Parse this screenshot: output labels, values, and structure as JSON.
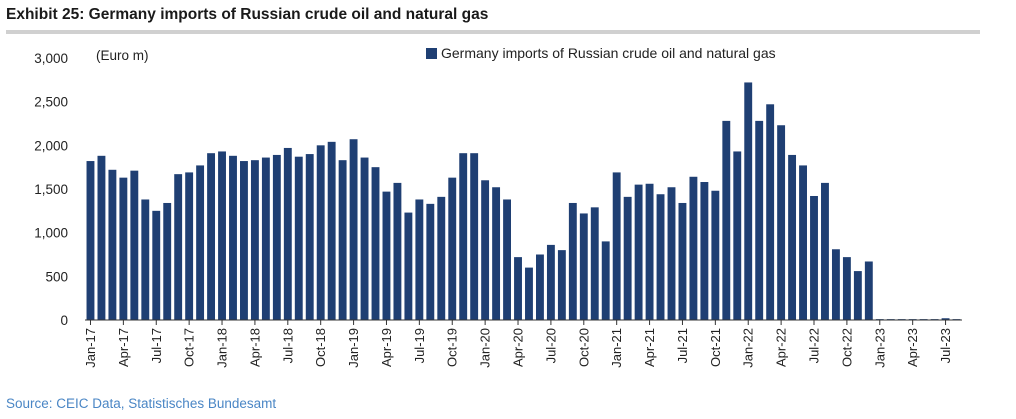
{
  "title": "Exhibit 25: Germany imports of Russian crude oil and natural gas",
  "source": "Source: CEIC Data, Statistisches Bundesamt",
  "colors": {
    "bar": "#1f3f73",
    "axis": "#333333",
    "source": "#4a86c5"
  },
  "chart_data": {
    "type": "bar",
    "title": "",
    "unit_label": "(Euro m)",
    "xlabel": "",
    "ylabel": "",
    "ylim": [
      0,
      3000
    ],
    "yticks": [
      0,
      500,
      1000,
      1500,
      2000,
      2500,
      3000
    ],
    "ytick_labels": [
      "0",
      "500",
      "1,000",
      "1,500",
      "2,000",
      "2,500",
      "3,000"
    ],
    "grid": false,
    "legend": "top-center",
    "categories": [
      "Jan-17",
      "Feb-17",
      "Mar-17",
      "Apr-17",
      "May-17",
      "Jun-17",
      "Jul-17",
      "Aug-17",
      "Sep-17",
      "Oct-17",
      "Nov-17",
      "Dec-17",
      "Jan-18",
      "Feb-18",
      "Mar-18",
      "Apr-18",
      "May-18",
      "Jun-18",
      "Jul-18",
      "Aug-18",
      "Sep-18",
      "Oct-18",
      "Nov-18",
      "Dec-18",
      "Jan-19",
      "Feb-19",
      "Mar-19",
      "Apr-19",
      "May-19",
      "Jun-19",
      "Jul-19",
      "Aug-19",
      "Sep-19",
      "Oct-19",
      "Nov-19",
      "Dec-19",
      "Jan-20",
      "Feb-20",
      "Mar-20",
      "Apr-20",
      "May-20",
      "Jun-20",
      "Jul-20",
      "Aug-20",
      "Sep-20",
      "Oct-20",
      "Nov-20",
      "Dec-20",
      "Jan-21",
      "Feb-21",
      "Mar-21",
      "Apr-21",
      "May-21",
      "Jun-21",
      "Jul-21",
      "Aug-21",
      "Sep-21",
      "Oct-21",
      "Nov-21",
      "Dec-21",
      "Jan-22",
      "Feb-22",
      "Mar-22",
      "Apr-22",
      "May-22",
      "Jun-22",
      "Jul-22",
      "Aug-22",
      "Sep-22",
      "Oct-22",
      "Nov-22",
      "Dec-22",
      "Jan-23",
      "Feb-23",
      "Mar-23",
      "Apr-23",
      "May-23",
      "Jun-23",
      "Jul-23",
      "Aug-23"
    ],
    "tick_labels": [
      "Jan-17",
      "Apr-17",
      "Jul-17",
      "Oct-17",
      "Jan-18",
      "Apr-18",
      "Jul-18",
      "Oct-18",
      "Jan-19",
      "Apr-19",
      "Jul-19",
      "Oct-19",
      "Jan-20",
      "Apr-20",
      "Jul-20",
      "Oct-20",
      "Jan-21",
      "Apr-21",
      "Jul-21",
      "Oct-21",
      "Jan-22",
      "Apr-22",
      "Jul-22",
      "Oct-22",
      "Jan-23",
      "Apr-23",
      "Jul-23"
    ],
    "series": [
      {
        "name": "Germany imports of Russian crude oil and natural gas",
        "values": [
          1820,
          1880,
          1720,
          1630,
          1710,
          1380,
          1250,
          1340,
          1670,
          1690,
          1770,
          1910,
          1930,
          1880,
          1820,
          1830,
          1860,
          1890,
          1970,
          1870,
          1900,
          2000,
          2040,
          1830,
          2070,
          1860,
          1750,
          1470,
          1570,
          1230,
          1380,
          1330,
          1410,
          1630,
          1910,
          1910,
          1600,
          1520,
          1380,
          720,
          600,
          750,
          860,
          800,
          1340,
          1220,
          1290,
          900,
          1690,
          1410,
          1550,
          1560,
          1440,
          1520,
          1340,
          1640,
          1580,
          1480,
          2280,
          1930,
          2720,
          2280,
          2470,
          2230,
          1890,
          1770,
          1420,
          1570,
          810,
          720,
          560,
          670,
          10,
          10,
          10,
          10,
          10,
          10,
          20,
          10
        ]
      }
    ]
  }
}
